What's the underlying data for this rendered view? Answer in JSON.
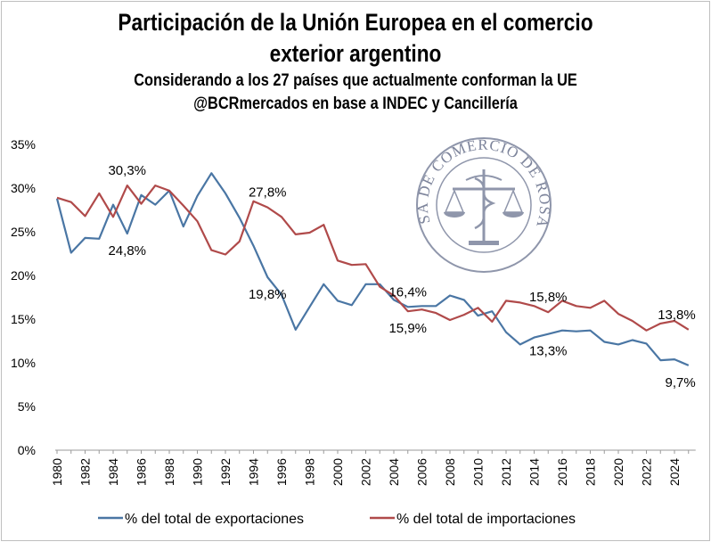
{
  "chart_data": {
    "type": "line",
    "title": "Participación de la Unión Europea en el comercio exterior argentino",
    "title_lines": [
      "Participación de la Unión Europea en el comercio",
      "exterior argentino"
    ],
    "subtitle_lines": [
      "Considerando a los 27 países que actualmente conforman la UE",
      "@BCRmercados en base a INDEC y Cancillería"
    ],
    "xlabel": "",
    "ylabel": "",
    "x": [
      1980,
      1981,
      1982,
      1983,
      1984,
      1985,
      1986,
      1987,
      1988,
      1989,
      1990,
      1991,
      1992,
      1993,
      1994,
      1995,
      1996,
      1997,
      1998,
      1999,
      2000,
      2001,
      2002,
      2003,
      2004,
      2005,
      2006,
      2007,
      2008,
      2009,
      2010,
      2011,
      2012,
      2013,
      2014,
      2015,
      2016,
      2017,
      2018,
      2019,
      2020,
      2021,
      2022,
      2023,
      2024,
      2025
    ],
    "x_tick_labels": [
      "1980",
      "1982",
      "1984",
      "1986",
      "1988",
      "1990",
      "1992",
      "1994",
      "1996",
      "1998",
      "2000",
      "2002",
      "2004",
      "2006",
      "2008",
      "2010",
      "2012",
      "2014",
      "2016",
      "2018",
      "2020",
      "2022",
      "2024"
    ],
    "y_tick_labels": [
      "0%",
      "5%",
      "10%",
      "15%",
      "20%",
      "25%",
      "30%",
      "35%"
    ],
    "ylim": [
      0,
      35
    ],
    "grid": false,
    "legend_position": "bottom",
    "series": [
      {
        "name": "% del total de exportaciones",
        "color": "#4a76a4",
        "values": [
          28.8,
          22.6,
          24.3,
          24.2,
          28.1,
          24.8,
          29.2,
          28.1,
          29.7,
          25.6,
          29.1,
          31.7,
          29.4,
          26.6,
          23.4,
          19.8,
          17.8,
          13.8,
          16.4,
          19.0,
          17.1,
          16.6,
          19.0,
          19.0,
          17.2,
          16.4,
          16.5,
          16.5,
          17.7,
          17.2,
          15.4,
          15.9,
          13.5,
          12.1,
          12.9,
          13.3,
          13.7,
          13.6,
          13.7,
          12.4,
          12.1,
          12.6,
          12.2,
          10.3,
          10.4,
          9.7
        ]
      },
      {
        "name": "% del total de importaciones",
        "color": "#b04a4a",
        "values": [
          28.9,
          28.4,
          26.8,
          29.4,
          26.7,
          30.3,
          28.2,
          30.3,
          29.7,
          28.0,
          26.2,
          22.9,
          22.4,
          23.9,
          28.5,
          27.8,
          26.7,
          24.7,
          24.9,
          25.8,
          21.7,
          21.2,
          21.3,
          18.7,
          17.7,
          15.9,
          16.1,
          15.7,
          14.9,
          15.5,
          16.3,
          14.7,
          17.1,
          16.9,
          16.5,
          15.8,
          17.1,
          16.5,
          16.3,
          17.1,
          15.6,
          14.8,
          13.7,
          14.5,
          14.8,
          13.8
        ]
      }
    ],
    "annotations": [
      {
        "text": "30,3%",
        "x": 1985,
        "series": 1
      },
      {
        "text": "24,8%",
        "x": 1985,
        "series": 0
      },
      {
        "text": "27,8%",
        "x": 1995,
        "series": 1
      },
      {
        "text": "19,8%",
        "x": 1995,
        "series": 0
      },
      {
        "text": "15,9%",
        "x": 2005,
        "series": 1
      },
      {
        "text": "16,4%",
        "x": 2005,
        "series": 0
      },
      {
        "text": "15,8%",
        "x": 2015,
        "series": 1
      },
      {
        "text": "13,3%",
        "x": 2015,
        "series": 0
      },
      {
        "text": "13,8%",
        "x": 2025,
        "series": 1
      },
      {
        "text": "9,7%",
        "x": 2025,
        "series": 0
      }
    ],
    "watermark_text": "BOLSA DE COMERCIO DE ROSARIO"
  }
}
